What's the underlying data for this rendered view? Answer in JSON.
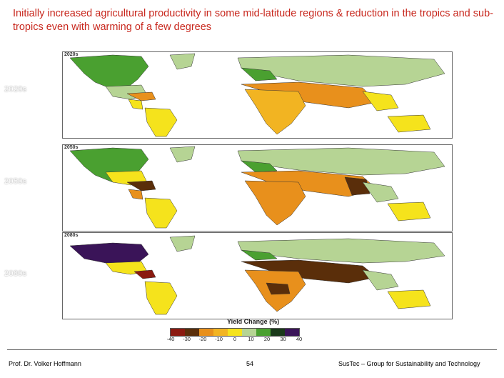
{
  "title": "Initially increased agricultural productivity in some mid-latitude regions & reduction in the tropics and sub-tropics even with warming of a few degrees",
  "periods": [
    {
      "label": "2020s",
      "tag": "2020s"
    },
    {
      "label": "2050s",
      "tag": "2050s"
    },
    {
      "label": "2080s",
      "tag": "2080s"
    }
  ],
  "legend": {
    "title": "Yield Change (%)",
    "ticks": [
      "-40",
      "-30",
      "-20",
      "-10",
      "0",
      "10",
      "20",
      "30",
      "40"
    ],
    "colors": [
      "#8b1a10",
      "#5a2e0a",
      "#e8901c",
      "#f2b422",
      "#f5e31c",
      "#b6d494",
      "#4aa030",
      "#1a3a1a",
      "#3a1458"
    ]
  },
  "colors": {
    "ocean": "#ffffff",
    "land_outline": "#333333"
  },
  "footer": {
    "author": "Prof. Dr. Volker Hoffmann",
    "page": "54",
    "org": "SusTec – Group for Sustainability and Technology"
  }
}
